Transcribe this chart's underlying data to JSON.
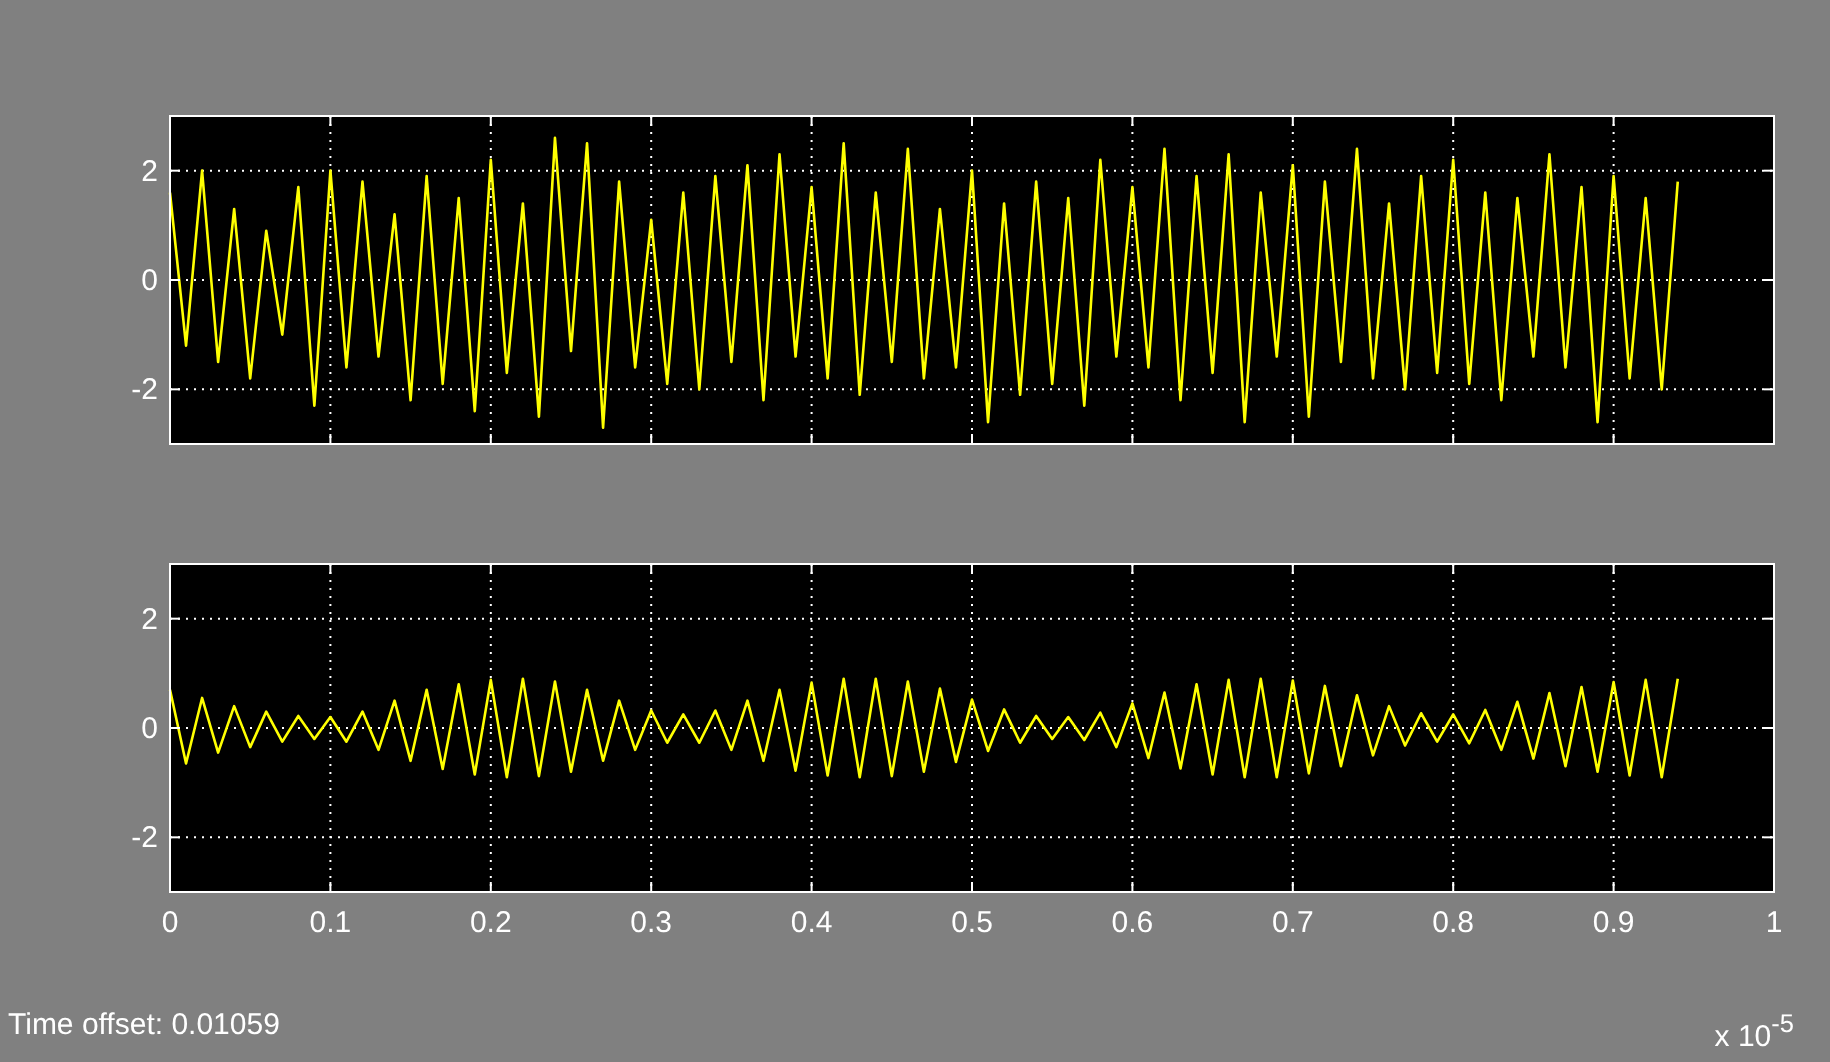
{
  "chart_data": [
    {
      "type": "line",
      "xlim": [
        0,
        1
      ],
      "xticks": [
        0,
        0.1,
        0.2,
        0.3,
        0.4,
        0.5,
        0.6,
        0.7,
        0.8,
        0.9,
        1
      ],
      "ylim": [
        -3,
        3
      ],
      "yticks": [
        -2,
        0,
        2
      ],
      "grid": true,
      "tick_labels": "y",
      "x": [
        0,
        0.01,
        0.02,
        0.03,
        0.04,
        0.05,
        0.06,
        0.07,
        0.08,
        0.09,
        0.1,
        0.11,
        0.12,
        0.13,
        0.14,
        0.15,
        0.16,
        0.17,
        0.18,
        0.19,
        0.2,
        0.21,
        0.22,
        0.23,
        0.24,
        0.25,
        0.26,
        0.27,
        0.28,
        0.29,
        0.3,
        0.31,
        0.32,
        0.33,
        0.34,
        0.35,
        0.36,
        0.37,
        0.38,
        0.39,
        0.4,
        0.41,
        0.42,
        0.43,
        0.44,
        0.45,
        0.46,
        0.47,
        0.48,
        0.49,
        0.5,
        0.51,
        0.52,
        0.53,
        0.54,
        0.55,
        0.56,
        0.57,
        0.58,
        0.59,
        0.6,
        0.61,
        0.62,
        0.63,
        0.64,
        0.65,
        0.66,
        0.67,
        0.68,
        0.69,
        0.7,
        0.71,
        0.72,
        0.73,
        0.74,
        0.75,
        0.76,
        0.77,
        0.78,
        0.79,
        0.8,
        0.81,
        0.82,
        0.83,
        0.84,
        0.85,
        0.86,
        0.87,
        0.88,
        0.89,
        0.9,
        0.91,
        0.92,
        0.93,
        0.94
      ],
      "series": [
        {
          "color": "#ffff00",
          "values": [
            1.6,
            -1.2,
            2.0,
            -1.5,
            1.3,
            -1.8,
            0.9,
            -1.0,
            1.7,
            -2.3,
            2.0,
            -1.6,
            1.8,
            -1.4,
            1.2,
            -2.2,
            1.9,
            -1.9,
            1.5,
            -2.4,
            2.2,
            -1.7,
            1.4,
            -2.5,
            2.6,
            -1.3,
            2.5,
            -2.7,
            1.8,
            -1.6,
            1.1,
            -1.9,
            1.6,
            -2.0,
            1.9,
            -1.5,
            2.1,
            -2.2,
            2.3,
            -1.4,
            1.7,
            -1.8,
            2.5,
            -2.1,
            1.6,
            -1.5,
            2.4,
            -1.8,
            1.3,
            -1.6,
            2.0,
            -2.6,
            1.4,
            -2.1,
            1.8,
            -1.9,
            1.5,
            -2.3,
            2.2,
            -1.4,
            1.7,
            -1.6,
            2.4,
            -2.2,
            1.9,
            -1.7,
            2.3,
            -2.6,
            1.6,
            -1.4,
            2.1,
            -2.5,
            1.8,
            -1.5,
            2.4,
            -1.8,
            1.4,
            -2.0,
            1.9,
            -1.7,
            2.2,
            -1.9,
            1.6,
            -2.2,
            1.5,
            -1.4,
            2.3,
            -1.6,
            1.7,
            -2.6,
            1.9,
            -1.8,
            1.5,
            -2.0,
            1.8
          ]
        }
      ]
    },
    {
      "type": "line",
      "xlim": [
        0,
        1
      ],
      "xticks": [
        0,
        0.1,
        0.2,
        0.3,
        0.4,
        0.5,
        0.6,
        0.7,
        0.8,
        0.9,
        1
      ],
      "ylim": [
        -3,
        3
      ],
      "yticks": [
        -2,
        0,
        2
      ],
      "grid": true,
      "annotations": [
        "Time offset:  0.01059",
        "x 10$^{-5}$"
      ],
      "x": [
        0,
        0.01,
        0.02,
        0.03,
        0.04,
        0.05,
        0.06,
        0.07,
        0.08,
        0.09,
        0.1,
        0.11,
        0.12,
        0.13,
        0.14,
        0.15,
        0.16,
        0.17,
        0.18,
        0.19,
        0.2,
        0.21,
        0.22,
        0.23,
        0.24,
        0.25,
        0.26,
        0.27,
        0.28,
        0.29,
        0.3,
        0.31,
        0.32,
        0.33,
        0.34,
        0.35,
        0.36,
        0.37,
        0.38,
        0.39,
        0.4,
        0.41,
        0.42,
        0.43,
        0.44,
        0.45,
        0.46,
        0.47,
        0.48,
        0.49,
        0.5,
        0.51,
        0.52,
        0.53,
        0.54,
        0.55,
        0.56,
        0.57,
        0.58,
        0.59,
        0.6,
        0.61,
        0.62,
        0.63,
        0.64,
        0.65,
        0.66,
        0.67,
        0.68,
        0.69,
        0.7,
        0.71,
        0.72,
        0.73,
        0.74,
        0.75,
        0.76,
        0.77,
        0.78,
        0.79,
        0.8,
        0.81,
        0.82,
        0.83,
        0.84,
        0.85,
        0.86,
        0.87,
        0.88,
        0.89,
        0.9,
        0.91,
        0.92,
        0.93,
        0.94
      ],
      "series": [
        {
          "color": "#ffff00",
          "values": [
            0.7,
            -0.65,
            0.55,
            -0.45,
            0.4,
            -0.35,
            0.3,
            -0.25,
            0.22,
            -0.2,
            0.2,
            -0.25,
            0.3,
            -0.4,
            0.5,
            -0.6,
            0.7,
            -0.75,
            0.8,
            -0.85,
            0.88,
            -0.9,
            0.9,
            -0.88,
            0.85,
            -0.8,
            0.7,
            -0.6,
            0.5,
            -0.4,
            0.32,
            -0.27,
            0.25,
            -0.27,
            0.32,
            -0.4,
            0.5,
            -0.6,
            0.7,
            -0.78,
            0.83,
            -0.87,
            0.9,
            -0.9,
            0.9,
            -0.88,
            0.85,
            -0.8,
            0.72,
            -0.62,
            0.52,
            -0.42,
            0.34,
            -0.27,
            0.22,
            -0.2,
            0.2,
            -0.22,
            0.28,
            -0.35,
            0.45,
            -0.55,
            0.65,
            -0.74,
            0.8,
            -0.85,
            0.88,
            -0.9,
            0.9,
            -0.9,
            0.87,
            -0.83,
            0.77,
            -0.7,
            0.6,
            -0.5,
            0.4,
            -0.32,
            0.27,
            -0.25,
            0.25,
            -0.28,
            0.33,
            -0.4,
            0.48,
            -0.56,
            0.64,
            -0.7,
            0.75,
            -0.8,
            0.84,
            -0.87,
            0.88,
            -0.9,
            0.9
          ]
        }
      ]
    }
  ]
}
